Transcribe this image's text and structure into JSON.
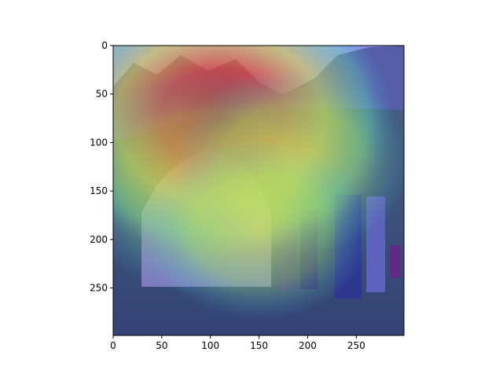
{
  "chart_data": {
    "type": "heatmap",
    "title": "",
    "xlabel": "",
    "ylabel": "",
    "image_description_semantic": "photo of a yurt with people in mountain meadow overlaid with jet-colormap attention heatmap",
    "xlim": [
      0,
      299
    ],
    "ylim": [
      299,
      0
    ],
    "xticks": [
      0,
      50,
      100,
      150,
      200,
      250
    ],
    "yticks": [
      0,
      50,
      100,
      150,
      200,
      250
    ],
    "grid": false,
    "colormap": "jet",
    "heat_peaks": [
      {
        "x": 110,
        "y": 75,
        "intensity": 1.0
      },
      {
        "x": 100,
        "y": 140,
        "intensity": 0.7
      },
      {
        "x": 185,
        "y": 120,
        "intensity": 0.45
      },
      {
        "x": 150,
        "y": 190,
        "intensity": 0.4
      }
    ]
  },
  "colors": {
    "jet_low": "#1e1ec8",
    "jet_mid": "#c8dc50",
    "jet_high": "#c81e1e",
    "sky": "#cfe0ef",
    "grass": "#4f7d3a",
    "yurt": "#c9c0ad"
  }
}
